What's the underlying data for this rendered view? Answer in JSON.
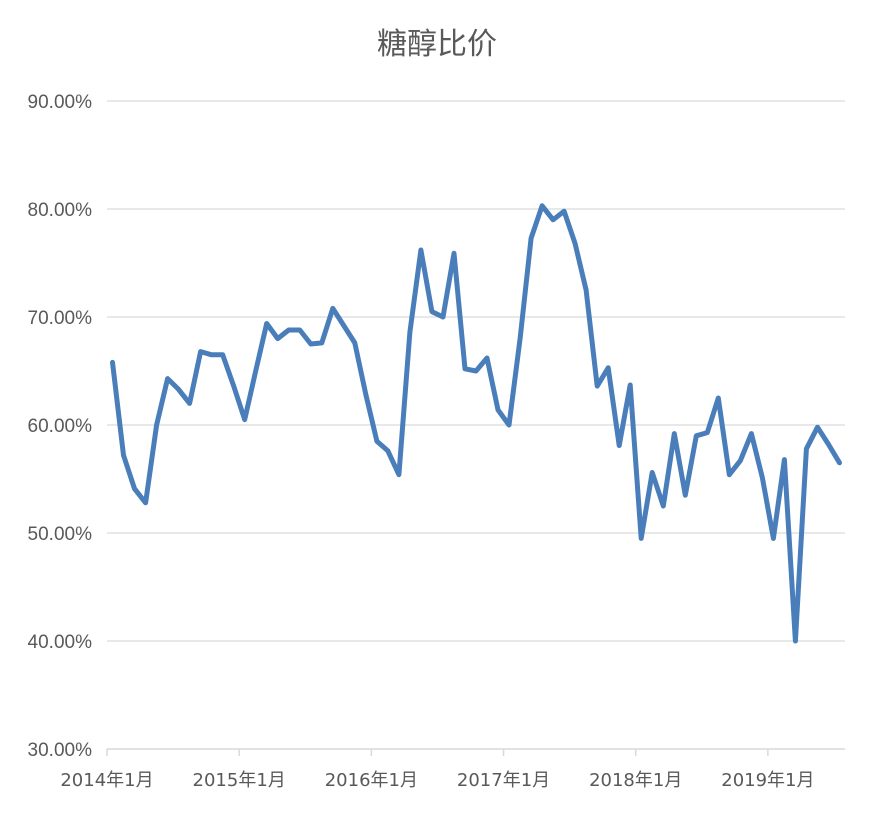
{
  "chart_data": {
    "type": "line",
    "title": "糖醇比价",
    "xlabel": "",
    "ylabel": "",
    "ylim": [
      0.3,
      0.9
    ],
    "y_ticks": [
      0.3,
      0.4,
      0.5,
      0.6,
      0.7,
      0.8,
      0.9
    ],
    "y_tick_labels": [
      "30.00%",
      "40.00%",
      "50.00%",
      "60.00%",
      "70.00%",
      "80.00%",
      "90.00%"
    ],
    "x_tick_labels": [
      "2014年1月",
      "2015年1月",
      "2016年1月",
      "2017年1月",
      "2018年1月",
      "2019年1月"
    ],
    "grid": true,
    "legend": "none",
    "line_color": "#4a7ebb",
    "series": [
      {
        "x": [
          "2014-01",
          "2014-02",
          "2014-03",
          "2014-04",
          "2014-05",
          "2014-06",
          "2014-07",
          "2014-08",
          "2014-09",
          "2014-10",
          "2014-11",
          "2014-12",
          "2015-01",
          "2015-02",
          "2015-03",
          "2015-04",
          "2015-05",
          "2015-06",
          "2015-07",
          "2015-08",
          "2015-09",
          "2015-10",
          "2015-11",
          "2015-12",
          "2016-01",
          "2016-02",
          "2016-03",
          "2016-04",
          "2016-05",
          "2016-06",
          "2016-07",
          "2016-08",
          "2016-09",
          "2016-10",
          "2016-11",
          "2016-12",
          "2017-01",
          "2017-02",
          "2017-03",
          "2017-04",
          "2017-05",
          "2017-06",
          "2017-07",
          "2017-08",
          "2017-09",
          "2017-10",
          "2017-11",
          "2017-12",
          "2018-01",
          "2018-02",
          "2018-03",
          "2018-04",
          "2018-05",
          "2018-06",
          "2018-07",
          "2018-08",
          "2018-09",
          "2018-10",
          "2018-11",
          "2018-12",
          "2019-01",
          "2019-02",
          "2019-03",
          "2019-04",
          "2019-05",
          "2019-06",
          "2019-07"
        ],
        "values": [
          0.658,
          0.572,
          0.541,
          0.528,
          0.6,
          0.643,
          0.633,
          0.62,
          0.668,
          0.665,
          0.665,
          0.636,
          0.605,
          0.65,
          0.694,
          0.68,
          0.688,
          0.688,
          0.675,
          0.676,
          0.708,
          0.692,
          0.676,
          0.628,
          0.585,
          0.576,
          0.554,
          0.686,
          0.762,
          0.705,
          0.7,
          0.759,
          0.652,
          0.65,
          0.662,
          0.614,
          0.6,
          0.68,
          0.773,
          0.803,
          0.79,
          0.798,
          0.768,
          0.725,
          0.636,
          0.653,
          0.581,
          0.637,
          0.495,
          0.556,
          0.525,
          0.592,
          0.535,
          0.59,
          0.593,
          0.625,
          0.554,
          0.567,
          0.592,
          0.551,
          0.495,
          0.568,
          0.4,
          0.578,
          0.598,
          0.582,
          0.565
        ]
      }
    ]
  }
}
